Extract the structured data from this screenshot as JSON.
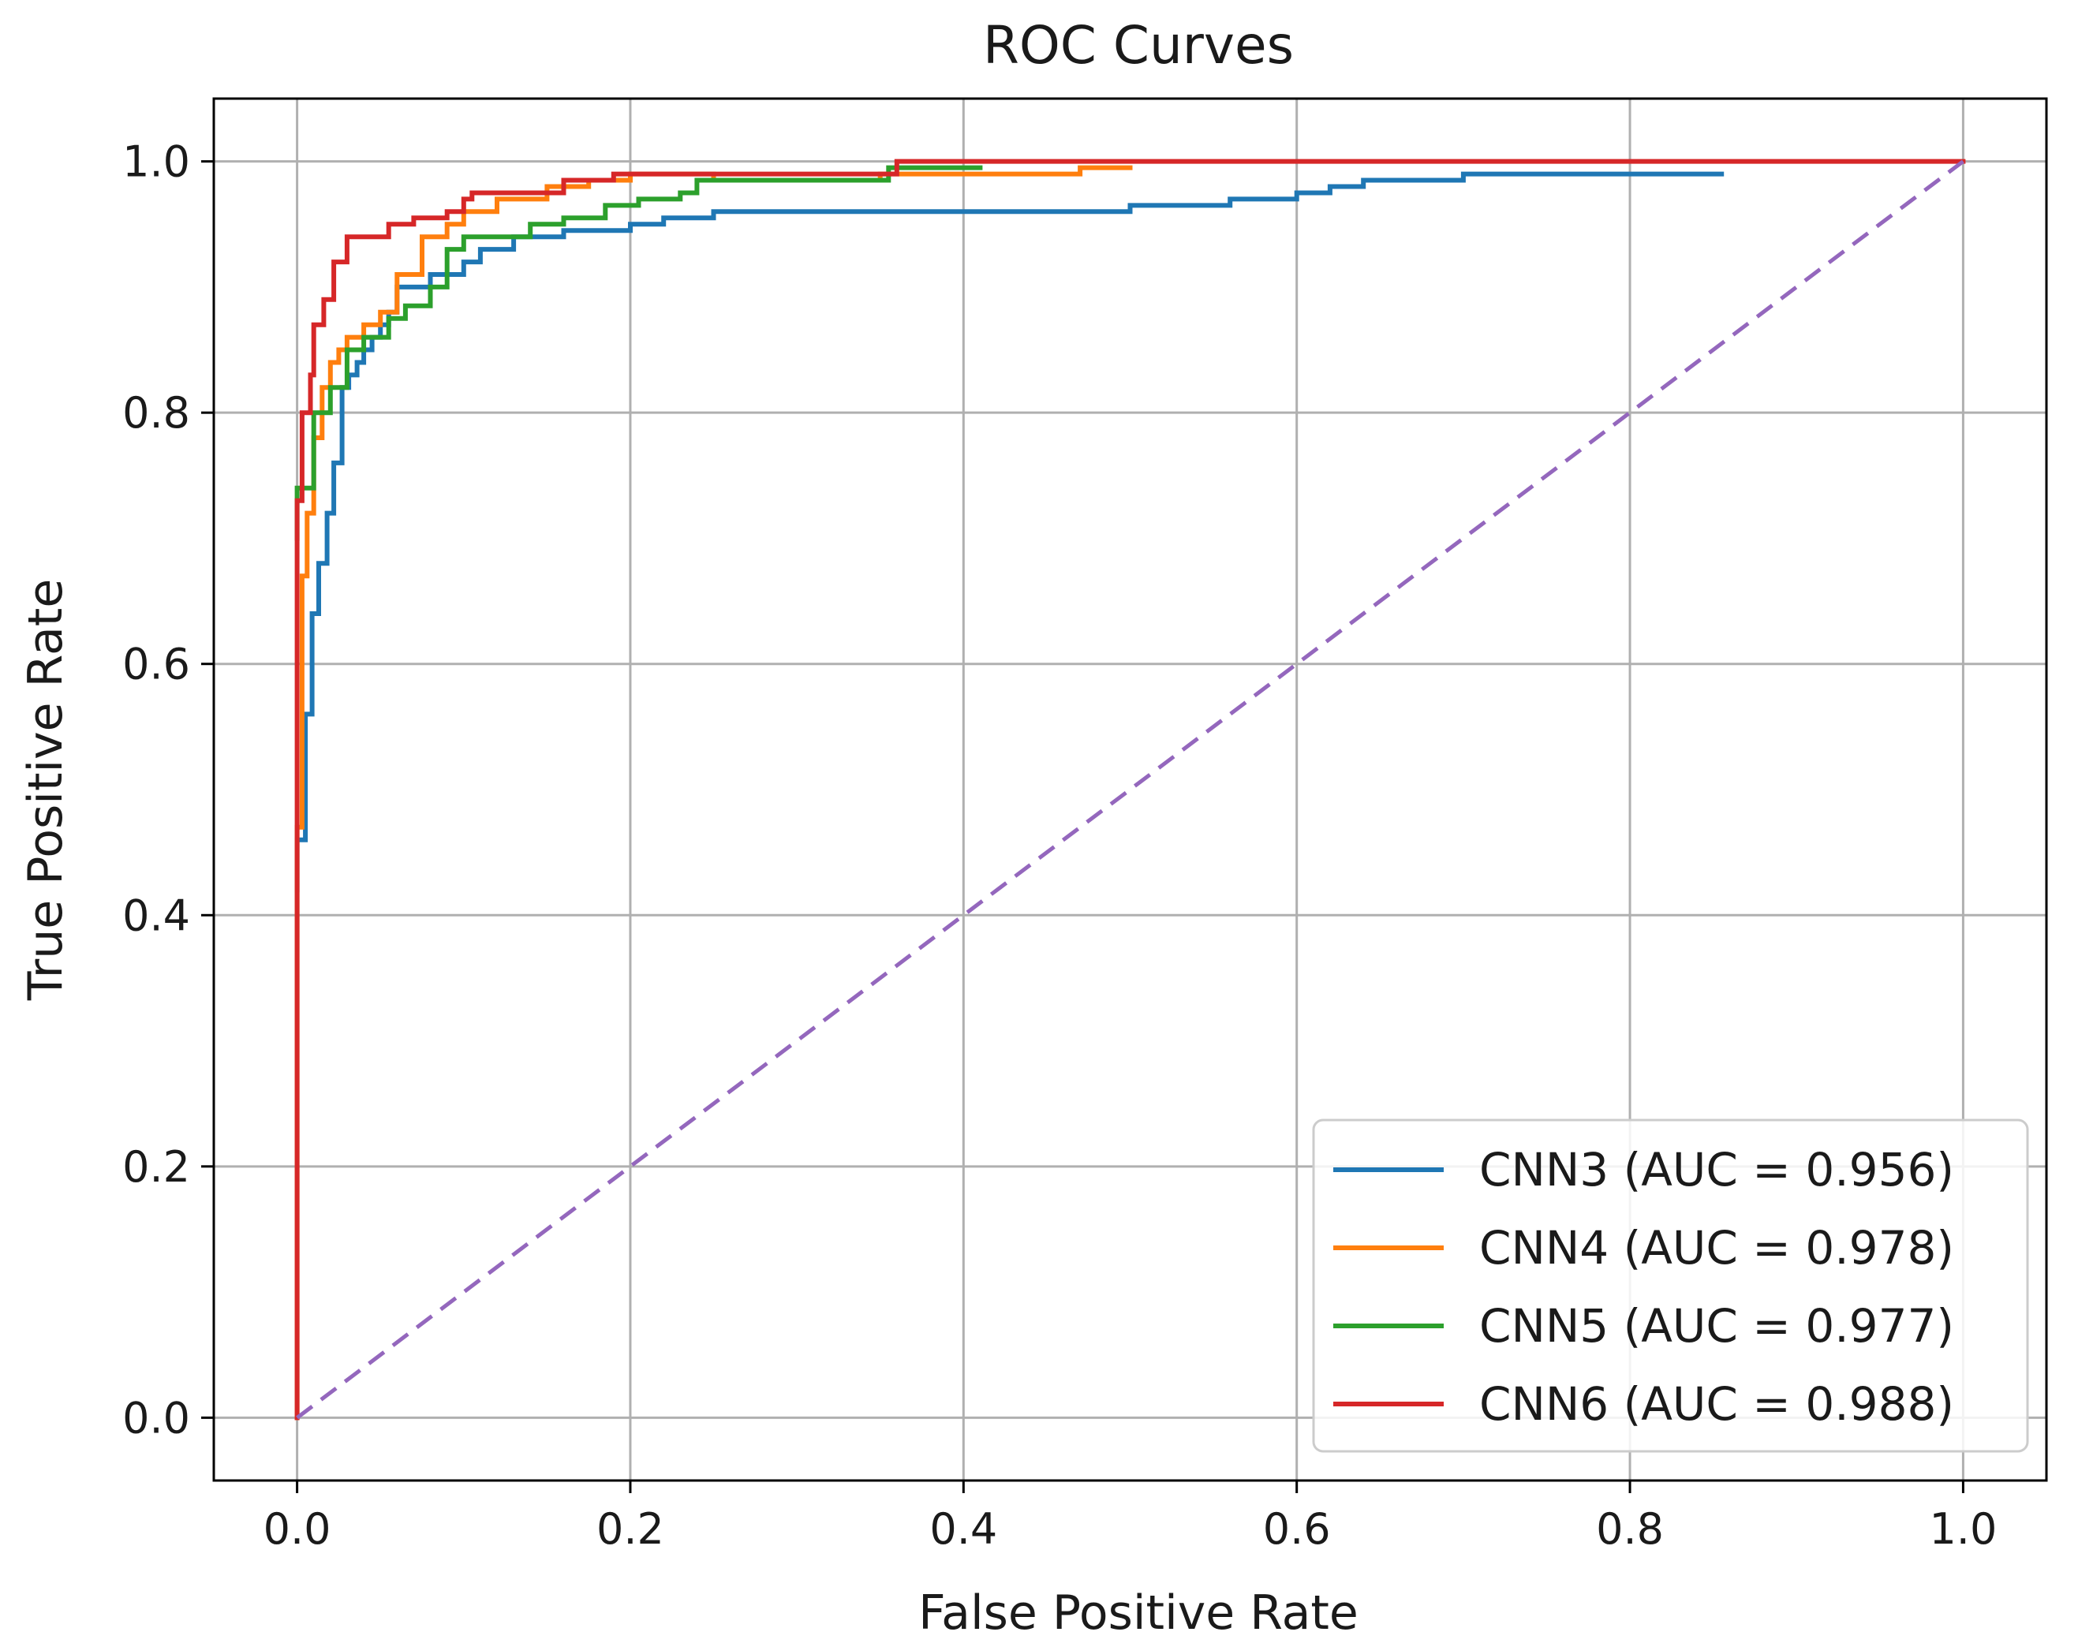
{
  "chart_data": {
    "type": "line",
    "title": "ROC Curves",
    "xlabel": "False Positive Rate",
    "ylabel": "True Positive Rate",
    "xlim": [
      -0.05,
      1.05
    ],
    "ylim": [
      -0.05,
      1.05
    ],
    "xticks": [
      0.0,
      0.2,
      0.4,
      0.6,
      0.8,
      1.0
    ],
    "yticks": [
      0.0,
      0.2,
      0.4,
      0.6,
      0.8,
      1.0
    ],
    "xtick_labels": [
      "0.0",
      "0.2",
      "0.4",
      "0.6",
      "0.8",
      "1.0"
    ],
    "ytick_labels": [
      "0.0",
      "0.2",
      "0.4",
      "0.6",
      "0.8",
      "1.0"
    ],
    "grid": true,
    "legend_position": "lower-right",
    "series": [
      {
        "name": "CNN3 (AUC = 0.956)",
        "color": "#1f77b4",
        "style": "solid",
        "x": [
          0,
          0,
          0.005,
          0.005,
          0.009,
          0.009,
          0.013,
          0.013,
          0.018,
          0.018,
          0.022,
          0.022,
          0.027,
          0.027,
          0.031,
          0.031,
          0.036,
          0.036,
          0.04,
          0.04,
          0.045,
          0.045,
          0.05,
          0.05,
          0.055,
          0.055,
          0.06,
          0.06,
          0.08,
          0.08,
          0.1,
          0.1,
          0.11,
          0.11,
          0.13,
          0.13,
          0.16,
          0.16,
          0.2,
          0.2,
          0.22,
          0.22,
          0.25,
          0.25,
          0.5,
          0.5,
          0.56,
          0.56,
          0.6,
          0.6,
          0.62,
          0.62,
          0.64,
          0.64,
          0.7,
          0.7,
          0.855
        ],
        "y": [
          0.42,
          0.46,
          0.46,
          0.56,
          0.56,
          0.64,
          0.64,
          0.68,
          0.68,
          0.72,
          0.72,
          0.76,
          0.76,
          0.82,
          0.82,
          0.83,
          0.83,
          0.84,
          0.84,
          0.85,
          0.85,
          0.86,
          0.86,
          0.87,
          0.87,
          0.88,
          0.88,
          0.9,
          0.9,
          0.91,
          0.91,
          0.92,
          0.92,
          0.93,
          0.93,
          0.94,
          0.94,
          0.945,
          0.945,
          0.95,
          0.95,
          0.955,
          0.955,
          0.96,
          0.96,
          0.965,
          0.965,
          0.97,
          0.97,
          0.975,
          0.975,
          0.98,
          0.98,
          0.985,
          0.985,
          0.99,
          0.99
        ]
      },
      {
        "name": "CNN4 (AUC = 0.978)",
        "color": "#ff7f0e",
        "style": "solid",
        "x": [
          0,
          0,
          0.003,
          0.003,
          0.006,
          0.006,
          0.01,
          0.01,
          0.015,
          0.015,
          0.02,
          0.02,
          0.025,
          0.025,
          0.03,
          0.03,
          0.04,
          0.04,
          0.05,
          0.05,
          0.06,
          0.06,
          0.075,
          0.075,
          0.09,
          0.09,
          0.1,
          0.1,
          0.12,
          0.12,
          0.15,
          0.15,
          0.175,
          0.175,
          0.2,
          0.2,
          0.25,
          0.25,
          0.35,
          0.35,
          0.47,
          0.47,
          0.5
        ],
        "y": [
          0,
          0.47,
          0.47,
          0.67,
          0.67,
          0.72,
          0.72,
          0.78,
          0.78,
          0.82,
          0.82,
          0.84,
          0.84,
          0.85,
          0.85,
          0.86,
          0.86,
          0.87,
          0.87,
          0.88,
          0.88,
          0.91,
          0.91,
          0.94,
          0.94,
          0.95,
          0.95,
          0.96,
          0.96,
          0.97,
          0.97,
          0.98,
          0.98,
          0.985,
          0.985,
          0.99,
          0.99,
          0.985,
          0.985,
          0.99,
          0.99,
          0.995,
          0.995
        ]
      },
      {
        "name": "CNN5 (AUC = 0.977)",
        "color": "#2ca02c",
        "style": "solid",
        "x": [
          0,
          0,
          0.01,
          0.01,
          0.02,
          0.02,
          0.03,
          0.03,
          0.04,
          0.04,
          0.055,
          0.055,
          0.065,
          0.065,
          0.08,
          0.08,
          0.09,
          0.09,
          0.1,
          0.1,
          0.14,
          0.14,
          0.16,
          0.16,
          0.185,
          0.185,
          0.205,
          0.205,
          0.23,
          0.23,
          0.24,
          0.24,
          0.355,
          0.355,
          0.41
        ],
        "y": [
          0.7,
          0.74,
          0.74,
          0.8,
          0.8,
          0.82,
          0.82,
          0.85,
          0.85,
          0.86,
          0.86,
          0.875,
          0.875,
          0.885,
          0.885,
          0.9,
          0.9,
          0.93,
          0.93,
          0.94,
          0.94,
          0.95,
          0.95,
          0.955,
          0.955,
          0.965,
          0.965,
          0.97,
          0.97,
          0.975,
          0.975,
          0.985,
          0.985,
          0.995,
          0.995
        ]
      },
      {
        "name": "CNN6 (AUC = 0.988)",
        "color": "#d62728",
        "style": "solid",
        "x": [
          0,
          0,
          0.003,
          0.003,
          0.008,
          0.008,
          0.01,
          0.01,
          0.016,
          0.016,
          0.022,
          0.022,
          0.03,
          0.03,
          0.055,
          0.055,
          0.07,
          0.07,
          0.09,
          0.09,
          0.1,
          0.1,
          0.105,
          0.105,
          0.16,
          0.16,
          0.19,
          0.19,
          0.36,
          0.36,
          1.0
        ],
        "y": [
          0,
          0.73,
          0.73,
          0.8,
          0.8,
          0.83,
          0.83,
          0.87,
          0.87,
          0.89,
          0.89,
          0.92,
          0.92,
          0.94,
          0.94,
          0.95,
          0.95,
          0.955,
          0.955,
          0.96,
          0.96,
          0.97,
          0.97,
          0.975,
          0.975,
          0.985,
          0.985,
          0.99,
          0.99,
          1.0,
          1.0
        ]
      },
      {
        "name": "",
        "color": "#9467bd",
        "style": "dashed",
        "x": [
          0,
          1
        ],
        "y": [
          0,
          1
        ]
      }
    ]
  }
}
